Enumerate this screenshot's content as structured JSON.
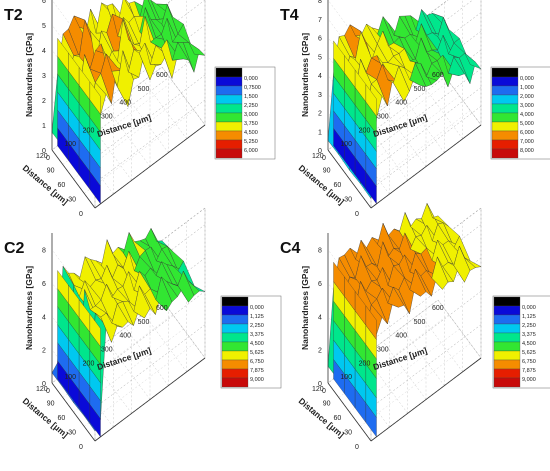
{
  "chart_data": [
    {
      "type": "surface",
      "panel_label": "T2",
      "zlabel": "Nanohardness [GPa]",
      "zticks": [
        0,
        1,
        2,
        3,
        4,
        5,
        6
      ],
      "zlim": [
        0,
        6
      ],
      "ylabel": "Distance [μm]",
      "yticks": [
        0,
        30,
        60,
        90,
        120
      ],
      "xlabel": "Distance [μm]",
      "xticks": [
        0,
        100,
        200,
        300,
        400,
        500,
        600
      ],
      "colorbar_ticks": [
        "0,000",
        "0,7500",
        "1,500",
        "2,250",
        "3,000",
        "3,750",
        "4,500",
        "5,250",
        "6,000"
      ],
      "approx_profile": {
        "x_um": [
          0,
          30,
          60,
          90,
          120,
          150,
          180,
          210,
          240,
          270,
          300,
          330,
          360,
          390,
          420,
          450,
          480,
          510,
          540,
          570,
          600
        ],
        "hardness_gpa": [
          0.7,
          3.2,
          4.3,
          4.0,
          4.8,
          4.4,
          3.3,
          4.2,
          3.6,
          4.6,
          3.8,
          3.9,
          3.4,
          4.0,
          3.2,
          3.5,
          3.0,
          3.3,
          2.7,
          2.9,
          2.6
        ]
      }
    },
    {
      "type": "surface",
      "panel_label": "T4",
      "zlabel": "Nanohardness [GPa]",
      "zticks": [
        0,
        1,
        2,
        3,
        4,
        5,
        6,
        7,
        8
      ],
      "zlim": [
        0,
        8
      ],
      "ylabel": "Distance [μm]",
      "yticks": [
        0,
        30,
        60,
        90,
        120
      ],
      "xlabel": "Distance [μm]",
      "xticks": [
        0,
        100,
        200,
        300,
        400,
        500,
        600
      ],
      "colorbar_ticks": [
        "0,000",
        "1,000",
        "2,000",
        "3,000",
        "4,000",
        "5,000",
        "6,000",
        "7,000",
        "8,000"
      ],
      "approx_profile": {
        "x_um": [
          0,
          30,
          60,
          90,
          120,
          150,
          180,
          210,
          240,
          270,
          300,
          330,
          360,
          390,
          420,
          450,
          480,
          510,
          540,
          570,
          600
        ],
        "hardness_gpa": [
          0.5,
          4.2,
          5.6,
          5.1,
          5.9,
          5.3,
          4.6,
          4.9,
          5.0,
          4.4,
          4.6,
          4.2,
          3.8,
          4.3,
          3.7,
          3.9,
          3.2,
          3.6,
          2.9,
          3.3,
          2.8
        ]
      }
    },
    {
      "type": "surface",
      "panel_label": "C2",
      "zlabel": "Nanohardness [GPa]",
      "zticks": [
        0,
        2,
        4,
        6,
        8
      ],
      "zlim": [
        0,
        9
      ],
      "ylabel": "Distance [μm]",
      "yticks": [
        0,
        30,
        60,
        90,
        120
      ],
      "xlabel": "Distance [μm]",
      "xticks": [
        0,
        100,
        200,
        300,
        400,
        500,
        600
      ],
      "colorbar_ticks": [
        "0,000",
        "1,125",
        "2,250",
        "3,375",
        "4,500",
        "5,625",
        "6,750",
        "7,875",
        "9,000"
      ],
      "approx_profile": {
        "x_um": [
          0,
          30,
          60,
          90,
          120,
          150,
          180,
          210,
          240,
          270,
          300,
          330,
          360,
          390,
          420,
          450,
          480,
          510,
          540,
          570,
          600
        ],
        "hardness_gpa": [
          0.6,
          1.0,
          6.5,
          5.5,
          5.7,
          5.3,
          5.9,
          5.4,
          5.6,
          5.0,
          5.8,
          4.9,
          5.5,
          4.6,
          5.2,
          4.8,
          4.9,
          4.3,
          4.5,
          4.0,
          3.8
        ]
      }
    },
    {
      "type": "surface",
      "panel_label": "C4",
      "zlabel": "Nanohardness [GPa]",
      "zticks": [
        0,
        2,
        4,
        6,
        8
      ],
      "zlim": [
        0,
        9
      ],
      "ylabel": "Distance [μm]",
      "yticks": [
        0,
        30,
        60,
        90,
        120
      ],
      "xlabel": "Distance [μm]",
      "xticks": [
        0,
        100,
        200,
        300,
        400,
        500,
        600
      ],
      "colorbar_ticks": [
        "0,000",
        "1,125",
        "2,250",
        "3,375",
        "4,500",
        "5,625",
        "6,750",
        "7,875",
        "9,000"
      ],
      "approx_profile": {
        "x_um": [
          0,
          30,
          60,
          90,
          120,
          150,
          180,
          210,
          240,
          270,
          300,
          330,
          360,
          390,
          420,
          450,
          480,
          510,
          540,
          570,
          600
        ],
        "hardness_gpa": [
          1.0,
          5.8,
          7.0,
          6.6,
          7.2,
          6.5,
          6.9,
          6.1,
          7.0,
          6.3,
          6.8,
          6.0,
          6.6,
          5.9,
          6.4,
          5.7,
          6.2,
          5.5,
          6.0,
          5.4,
          5.3
        ]
      }
    }
  ],
  "colorbar_colors": [
    "#000000",
    "#0a0ad8",
    "#1e6cf0",
    "#00c8f0",
    "#00e68c",
    "#32e632",
    "#f0f000",
    "#f58c00",
    "#e61e00",
    "#c80a0a"
  ]
}
